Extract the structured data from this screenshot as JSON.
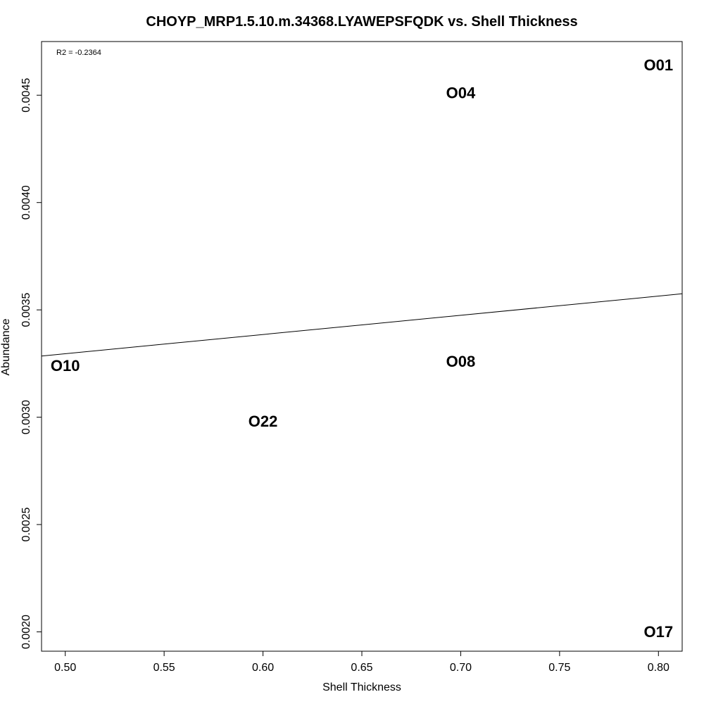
{
  "chart_data": {
    "type": "scatter",
    "title": "CHOYP_MRP1.5.10.m.34368.LYAWEPSFQDK vs. Shell Thickness",
    "xlabel": "Shell Thickness",
    "ylabel": "Abundance",
    "xlim": [
      0.488,
      0.812
    ],
    "ylim": [
      0.00191,
      0.00475
    ],
    "x_ticks": [
      "0.50",
      "0.55",
      "0.60",
      "0.65",
      "0.70",
      "0.75",
      "0.80"
    ],
    "y_ticks": [
      "0.0020",
      "0.0025",
      "0.0030",
      "0.0035",
      "0.0040",
      "0.0045"
    ],
    "grid": false,
    "annotation": "R2 = -0.2364",
    "points": [
      {
        "label": "O01",
        "x": 0.8,
        "y": 0.00464
      },
      {
        "label": "O04",
        "x": 0.7,
        "y": 0.00451
      },
      {
        "label": "O10",
        "x": 0.5,
        "y": 0.00324
      },
      {
        "label": "O08",
        "x": 0.7,
        "y": 0.00326
      },
      {
        "label": "O22",
        "x": 0.6,
        "y": 0.00298
      },
      {
        "label": "O17",
        "x": 0.8,
        "y": 0.002
      }
    ],
    "fit_line": {
      "x": [
        0.488,
        0.812
      ],
      "y": [
        0.003285,
        0.003575
      ]
    }
  }
}
